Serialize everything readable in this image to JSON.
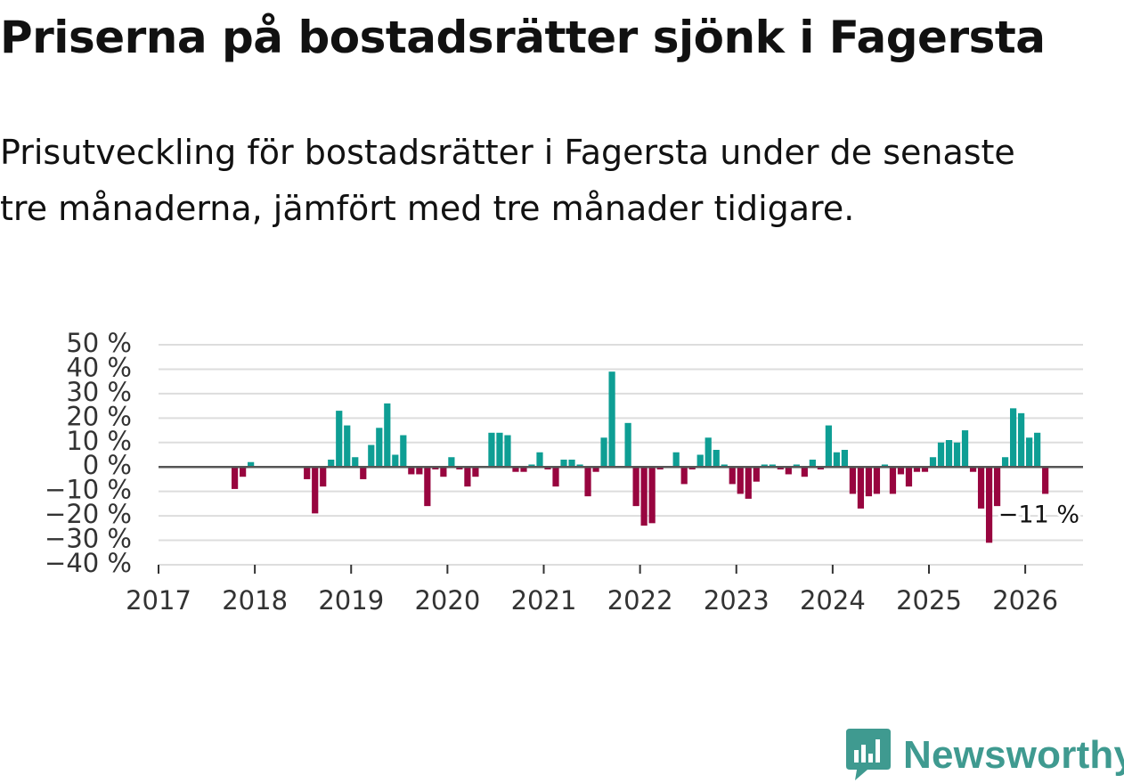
{
  "header": {
    "title": "Priserna på bostadsrätter sjönk i Fagersta",
    "subtitle": "Prisutveckling för bostadsrätter i Fagersta under de senaste tre månaderna, jämfört med tre månader tidigare."
  },
  "brand": {
    "name": "Newsworthy",
    "color": "#3f9a90",
    "icon": "newsworthy-logo-icon"
  },
  "colors": {
    "positive": "#0e9e94",
    "negative": "#98053f",
    "grid": "#dddddd",
    "zero_line": "#555555",
    "axis_text": "#333333"
  },
  "chart_data": {
    "type": "bar",
    "title": "Prisutveckling för bostadsrätter i Fagersta",
    "xlabel": "",
    "ylabel": "",
    "unit": "%",
    "ylim": [
      -40,
      50
    ],
    "yticks": [
      50,
      40,
      30,
      20,
      10,
      0,
      -10,
      -20,
      -30,
      -40
    ],
    "ytick_labels": [
      "50 %",
      "40 %",
      "30 %",
      "20 %",
      "10 %",
      "0 %",
      "−10 %",
      "−20 %",
      "−30 %",
      "−40 %"
    ],
    "xlim": [
      2017.0,
      2026.6
    ],
    "xticks": [
      2017,
      2018,
      2019,
      2020,
      2021,
      2022,
      2023,
      2024,
      2025,
      2026
    ],
    "xtick_labels": [
      "2017",
      "2018",
      "2019",
      "2020",
      "2021",
      "2022",
      "2023",
      "2024",
      "2025",
      "2026"
    ],
    "x_start": 2017.0,
    "step_months": 1,
    "values": [
      null,
      null,
      null,
      null,
      null,
      null,
      null,
      null,
      null,
      -9,
      -4,
      2,
      null,
      null,
      null,
      null,
      null,
      null,
      -5,
      -19,
      -8,
      3,
      23,
      17,
      4,
      -5,
      9,
      16,
      26,
      5,
      13,
      -3,
      -3,
      -16,
      -1,
      -4,
      4,
      -1,
      -8,
      -4,
      0,
      14,
      14,
      13,
      -2,
      -2,
      1,
      6,
      -1,
      -8,
      3,
      3,
      1,
      -12,
      -2,
      12,
      39,
      null,
      18,
      -16,
      -24,
      -23,
      -1,
      null,
      6,
      -7,
      -1,
      5,
      12,
      7,
      1,
      -7,
      -11,
      -13,
      -6,
      1,
      1,
      -1,
      -3,
      1,
      -4,
      3,
      -1,
      17,
      6,
      7,
      -11,
      -17,
      -12,
      -11,
      1,
      -11,
      -3,
      -8,
      -2,
      -2,
      4,
      10,
      11,
      10,
      15,
      -2,
      -17,
      -31,
      -16,
      4,
      24,
      22,
      12,
      14,
      -11
    ],
    "last_label": "−11 %"
  }
}
